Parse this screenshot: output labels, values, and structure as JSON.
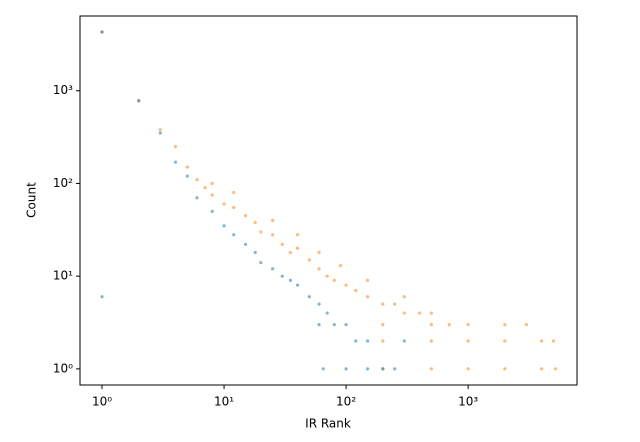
{
  "chart_data": {
    "type": "scatter",
    "xlabel": "IR Rank",
    "ylabel": "Count",
    "xscale": "log",
    "yscale": "log",
    "xlim": [
      0.66,
      7800
    ],
    "ylim": [
      0.67,
      6400
    ],
    "xticks": [
      {
        "value": 1,
        "label": "10⁰"
      },
      {
        "value": 10,
        "label": "10¹"
      },
      {
        "value": 100,
        "label": "10²"
      },
      {
        "value": 1000,
        "label": "10³"
      }
    ],
    "yticks": [
      {
        "value": 1,
        "label": "10⁰"
      },
      {
        "value": 10,
        "label": "10¹"
      },
      {
        "value": 100,
        "label": "10²"
      },
      {
        "value": 1000,
        "label": "10³"
      }
    ],
    "series": [
      {
        "color": "#ff7f0e",
        "x": [
          1,
          2,
          3,
          4,
          5,
          6,
          7,
          8,
          10,
          12,
          15,
          18,
          20,
          25,
          30,
          35,
          40,
          50,
          60,
          70,
          80,
          100,
          120,
          150,
          200,
          250,
          300,
          400,
          500,
          700,
          200,
          500,
          1000,
          2000,
          3000,
          200,
          500,
          1000,
          2000,
          4000,
          5000,
          200,
          500,
          1000,
          2000,
          4000,
          5200,
          300,
          150,
          90,
          60,
          40,
          25,
          12,
          8
        ],
        "values": [
          4300,
          780,
          380,
          250,
          150,
          110,
          90,
          75,
          60,
          55,
          45,
          38,
          30,
          28,
          22,
          18,
          20,
          15,
          12,
          10,
          9,
          8,
          7,
          6,
          5,
          5,
          4,
          4,
          4,
          3,
          3,
          3,
          3,
          3,
          3,
          2,
          2,
          2,
          2,
          2,
          2,
          1,
          1,
          1,
          1,
          1,
          1,
          6,
          9,
          13,
          18,
          28,
          40,
          80,
          100
        ]
      },
      {
        "color": "#1f77b4",
        "x": [
          1,
          1,
          2,
          3,
          4,
          5,
          6,
          8,
          10,
          12,
          15,
          18,
          20,
          25,
          30,
          35,
          40,
          50,
          60,
          60,
          70,
          80,
          100,
          120,
          150,
          100,
          150,
          65,
          200,
          300,
          250
        ],
        "values": [
          6,
          4300,
          780,
          350,
          170,
          120,
          70,
          50,
          35,
          28,
          22,
          18,
          14,
          12,
          10,
          9,
          8,
          6,
          5,
          3,
          4,
          3,
          3,
          2,
          2,
          1,
          1,
          1,
          1,
          2,
          1
        ]
      }
    ]
  }
}
